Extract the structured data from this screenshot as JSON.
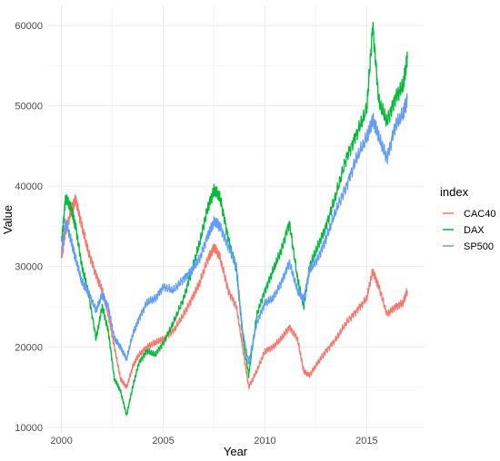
{
  "chart_data": {
    "type": "line",
    "xlabel": "Year",
    "ylabel": "Value",
    "xlim": [
      1999.3,
      2017.8
    ],
    "ylim": [
      9300,
      62500
    ],
    "x_ticks": [
      2000,
      2005,
      2010,
      2015
    ],
    "x_tick_labels": [
      "2000",
      "2005",
      "2010",
      "2015"
    ],
    "x_minor_ticks": [
      2002.5,
      2007.5,
      2012.5
    ],
    "y_ticks": [
      10000,
      20000,
      30000,
      40000,
      50000,
      60000
    ],
    "y_tick_labels": [
      "10000",
      "20000",
      "30000",
      "40000",
      "50000",
      "60000"
    ],
    "y_minor_ticks": [
      15000,
      25000,
      35000,
      45000,
      55000
    ],
    "grid": true,
    "legend": {
      "title": "index",
      "position": "right"
    },
    "series": [
      {
        "name": "CAC40",
        "color": "#F8766D",
        "x": [
          2000.0,
          2000.2,
          2000.5,
          2000.7,
          2001.0,
          2001.3,
          2001.7,
          2002.0,
          2002.3,
          2002.6,
          2002.9,
          2003.2,
          2003.5,
          2003.8,
          2004.2,
          2004.6,
          2005.0,
          2005.5,
          2006.0,
          2006.4,
          2006.8,
          2007.2,
          2007.5,
          2007.8,
          2008.2,
          2008.6,
          2008.9,
          2009.2,
          2009.6,
          2010.0,
          2010.4,
          2010.8,
          2011.2,
          2011.6,
          2011.9,
          2012.2,
          2012.6,
          2013.0,
          2013.5,
          2014.0,
          2014.5,
          2015.0,
          2015.3,
          2015.6,
          2016.0,
          2016.4,
          2016.8,
          2017.0
        ],
        "y": [
          31000,
          34500,
          37000,
          38500,
          35000,
          32000,
          29000,
          27000,
          24000,
          20000,
          16000,
          15000,
          17500,
          19000,
          20000,
          20500,
          21000,
          22000,
          24000,
          26000,
          28000,
          31000,
          32500,
          31000,
          27000,
          25000,
          20000,
          15000,
          17000,
          19500,
          20000,
          21000,
          22500,
          21000,
          17000,
          16500,
          18000,
          19500,
          21000,
          23000,
          24500,
          26000,
          29500,
          27500,
          24000,
          25000,
          25500,
          27000
        ]
      },
      {
        "name": "DAX",
        "color": "#00BA38",
        "x": [
          2000.0,
          2000.2,
          2000.5,
          2000.7,
          2001.0,
          2001.3,
          2001.7,
          2002.0,
          2002.3,
          2002.6,
          2002.9,
          2003.2,
          2003.5,
          2003.8,
          2004.2,
          2004.6,
          2005.0,
          2005.5,
          2006.0,
          2006.4,
          2006.8,
          2007.2,
          2007.5,
          2007.8,
          2008.2,
          2008.6,
          2008.9,
          2009.2,
          2009.6,
          2010.0,
          2010.4,
          2010.8,
          2011.2,
          2011.6,
          2011.9,
          2012.2,
          2012.6,
          2013.0,
          2013.5,
          2014.0,
          2014.5,
          2015.0,
          2015.3,
          2015.6,
          2016.0,
          2016.4,
          2016.8,
          2017.0
        ],
        "y": [
          33000,
          38500,
          37000,
          35000,
          30000,
          27000,
          21000,
          25000,
          22000,
          16000,
          14500,
          11500,
          15000,
          18000,
          19500,
          19000,
          20500,
          23000,
          26000,
          29500,
          33000,
          37500,
          39500,
          38500,
          33500,
          29500,
          21500,
          16500,
          24000,
          27000,
          29500,
          32000,
          35500,
          28500,
          25000,
          30000,
          32500,
          35000,
          39000,
          43500,
          46500,
          49500,
          60000,
          50500,
          48000,
          51000,
          52500,
          56000
        ]
      },
      {
        "name": "SP500",
        "color": "#619CFF",
        "x": [
          2000.0,
          2000.2,
          2000.5,
          2000.7,
          2001.0,
          2001.3,
          2001.7,
          2002.0,
          2002.3,
          2002.6,
          2002.9,
          2003.2,
          2003.5,
          2003.8,
          2004.2,
          2004.6,
          2005.0,
          2005.5,
          2006.0,
          2006.4,
          2006.8,
          2007.2,
          2007.5,
          2007.8,
          2008.2,
          2008.6,
          2008.9,
          2009.2,
          2009.6,
          2010.0,
          2010.4,
          2010.8,
          2011.2,
          2011.6,
          2011.9,
          2012.2,
          2012.6,
          2013.0,
          2013.5,
          2014.0,
          2014.5,
          2015.0,
          2015.3,
          2015.6,
          2016.0,
          2016.4,
          2016.8,
          2017.0
        ],
        "y": [
          32000,
          35500,
          33000,
          31000,
          28000,
          27000,
          24500,
          26500,
          25000,
          21000,
          20000,
          18500,
          21500,
          23500,
          25500,
          26000,
          27500,
          27000,
          28500,
          29500,
          31000,
          34000,
          35500,
          35000,
          32500,
          30000,
          22000,
          18000,
          23000,
          25500,
          26000,
          28000,
          30500,
          27000,
          26000,
          29500,
          31000,
          33500,
          37000,
          40000,
          43500,
          46000,
          48500,
          46000,
          43500,
          47500,
          49000,
          51000
        ]
      }
    ]
  }
}
